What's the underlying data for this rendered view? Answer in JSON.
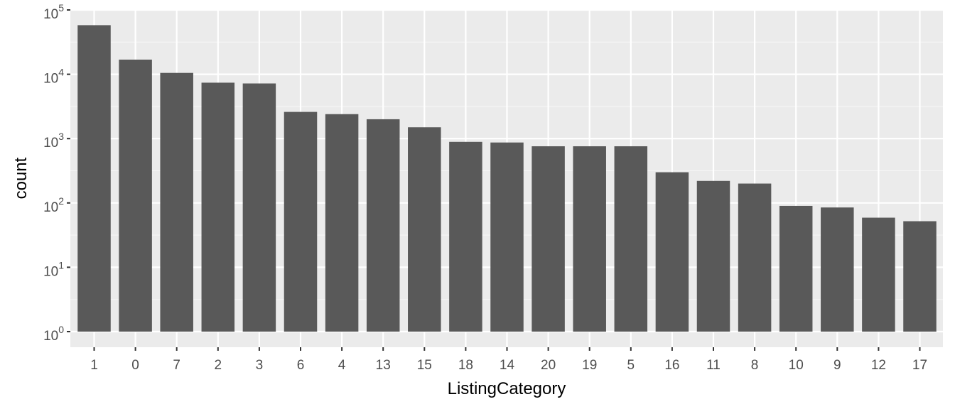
{
  "chart_data": {
    "type": "bar",
    "title": "",
    "xlabel": "ListingCategory",
    "ylabel": "count",
    "yscale": "log10",
    "ylim": [
      1,
      100000
    ],
    "yticks": [
      {
        "value": 1,
        "base": "10",
        "exp": "0"
      },
      {
        "value": 10,
        "base": "10",
        "exp": "1"
      },
      {
        "value": 100,
        "base": "10",
        "exp": "2"
      },
      {
        "value": 1000,
        "base": "10",
        "exp": "3"
      },
      {
        "value": 10000,
        "base": "10",
        "exp": "4"
      },
      {
        "value": 100000,
        "base": "10",
        "exp": "5"
      }
    ],
    "categories": [
      "1",
      "0",
      "7",
      "2",
      "3",
      "6",
      "4",
      "13",
      "15",
      "18",
      "14",
      "20",
      "19",
      "5",
      "16",
      "11",
      "8",
      "10",
      "9",
      "12",
      "17"
    ],
    "values": [
      58000,
      16900,
      10500,
      7400,
      7200,
      2600,
      2400,
      2000,
      1500,
      890,
      870,
      760,
      760,
      760,
      300,
      220,
      200,
      90,
      85,
      59,
      52
    ],
    "grid": true,
    "legend": "none",
    "colors": {
      "panel_background": "#ebebeb",
      "grid_major": "#ffffff",
      "bar_fill": "#595959",
      "tick_text": "#4d4d4d",
      "axis_title_text": "#000000",
      "tick_mark": "#333333"
    }
  }
}
